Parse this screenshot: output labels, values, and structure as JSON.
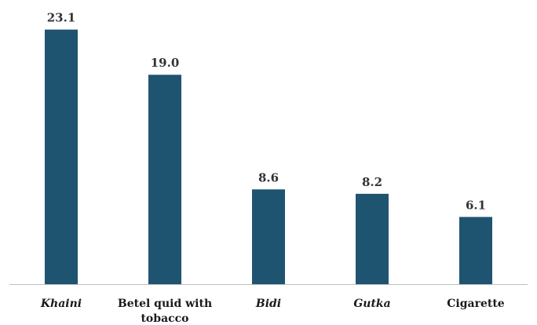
{
  "chart_data": {
    "type": "bar",
    "title": "",
    "xlabel": "",
    "ylabel": "",
    "categories": [
      {
        "lines": [
          "Khaini"
        ],
        "italic": true
      },
      {
        "lines": [
          "Betel quid with",
          "tobacco"
        ],
        "italic": false
      },
      {
        "lines": [
          "Bidi"
        ],
        "italic": true
      },
      {
        "lines": [
          "Gutka"
        ],
        "italic": true
      },
      {
        "lines": [
          "Cigarette"
        ],
        "italic": false
      }
    ],
    "values": [
      23.1,
      19.0,
      8.6,
      8.2,
      6.1
    ],
    "value_labels": [
      "23.1",
      "19.0",
      "8.6",
      "8.2",
      "6.1"
    ],
    "ylim": [
      0,
      25
    ],
    "grid": false,
    "legend": "none",
    "colors": {
      "bar": "#1f5470",
      "axis": "#bfbfbf"
    }
  }
}
